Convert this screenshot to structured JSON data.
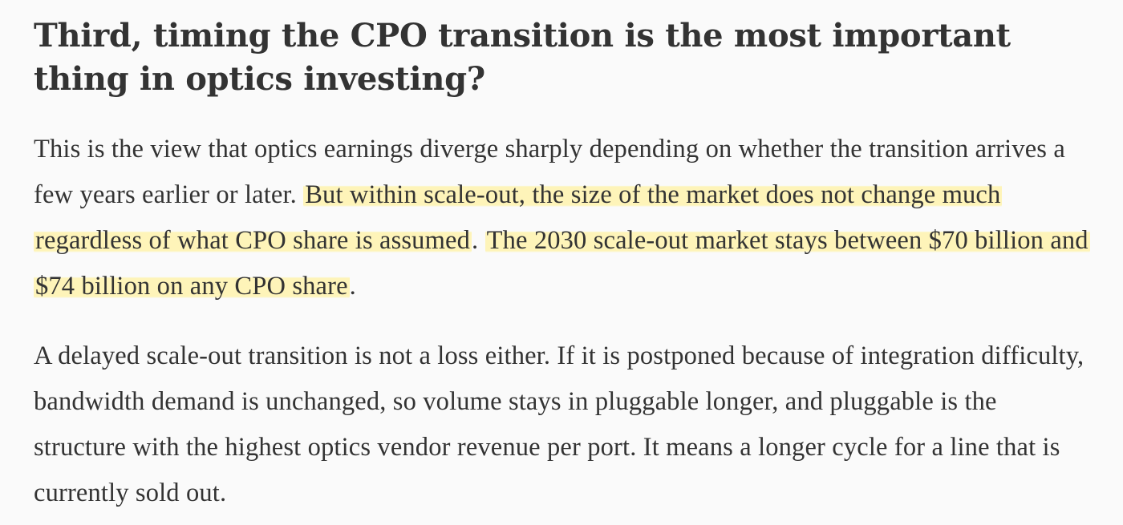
{
  "article": {
    "heading": "Third, timing the CPO transition is the most important thing in optics investing?",
    "paragraph_1": {
      "lead": "This is the view that optics earnings diverge sharply depending on whether the transition arrives a few years earlier or later. ",
      "highlight_1": "But within scale-out, the size of the market does not change much regardless of what CPO share is assumed",
      "middle": ". ",
      "highlight_2": "The 2030 scale-out market stays between $70 billion and $74 billion on any CPO share",
      "end": "."
    },
    "paragraph_2": "A delayed scale-out transition is not a loss either. If it is postponed because of integration difficulty, bandwidth demand is unchanged, so volume stays in pluggable longer, and pluggable is the structure with the highest optics vendor revenue per port. It means a longer cycle for a line that is currently sold out.",
    "colors": {
      "background": "#fafafa",
      "text": "#333333",
      "highlight": "#fff2a0"
    }
  }
}
